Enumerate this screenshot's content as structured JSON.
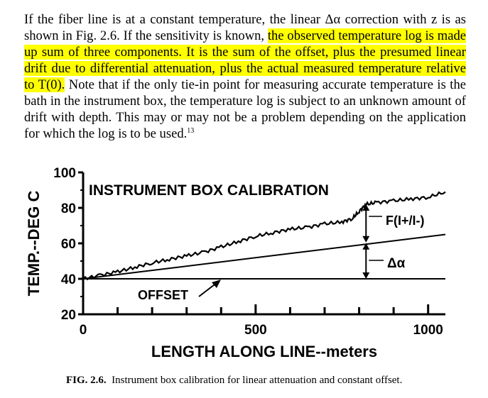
{
  "paragraph": {
    "text_before_highlight": "If the fiber line is at a constant temperature, the linear Δα correction with z is as shown in Fig. 2.6. If the sensitivity is known, ",
    "highlighted_text": "the observed temperature log is made up sum of three components. It is the sum of the offset, plus the presumed linear drift due to differential attenuation, plus the actual measured temperature relative to T(0).",
    "text_after_highlight": " Note that if the only tie-in point for measuring accurate temperature is the bath in the instrument box, the temperature log is subject to an unknown amount of drift with depth. This may or may not be a problem depending on the application for which the log is to be used.",
    "footnote": "13",
    "highlight_color": "#ffff00"
  },
  "figure": {
    "title": "INSTRUMENT BOX CALIBRATION",
    "annotations": {
      "offset": "OFFSET",
      "f_label": "F(I+/I-)",
      "delta_alpha": "Δα"
    }
  },
  "chart_data": {
    "type": "line",
    "title": "INSTRUMENT BOX CALIBRATION",
    "xlabel": "LENGTH ALONG LINE--meters",
    "ylabel": "TEMP.--DEG C",
    "xlim": [
      0,
      1050
    ],
    "ylim": [
      20,
      100
    ],
    "x_ticks": [
      "0",
      "500",
      "1000"
    ],
    "x_tick_values": [
      0,
      500,
      1000
    ],
    "y_ticks": [
      "100",
      "80",
      "60",
      "40",
      "20"
    ],
    "y_tick_values": [
      100,
      80,
      60,
      40,
      20
    ],
    "grid": false,
    "series": [
      {
        "x": [
          0,
          1050
        ],
        "y": [
          40,
          40
        ]
      },
      {
        "x": [
          0,
          1050
        ],
        "y": [
          40,
          65
        ]
      },
      {
        "x": [
          0,
          50,
          100,
          150,
          200,
          250,
          300,
          350,
          400,
          450,
          500,
          550,
          600,
          650,
          700,
          750,
          780,
          800,
          820,
          850,
          900,
          950,
          1000,
          1050
        ],
        "y": [
          40,
          42,
          44,
          46.5,
          49,
          51,
          53,
          55,
          58,
          61,
          64,
          66,
          68,
          69,
          71,
          72,
          74,
          78,
          82,
          83,
          84,
          85,
          86,
          89
        ]
      }
    ]
  },
  "caption": {
    "label": "FIG. 2.6.",
    "text": "Instrument box calibration for linear attenuation and constant offset."
  }
}
